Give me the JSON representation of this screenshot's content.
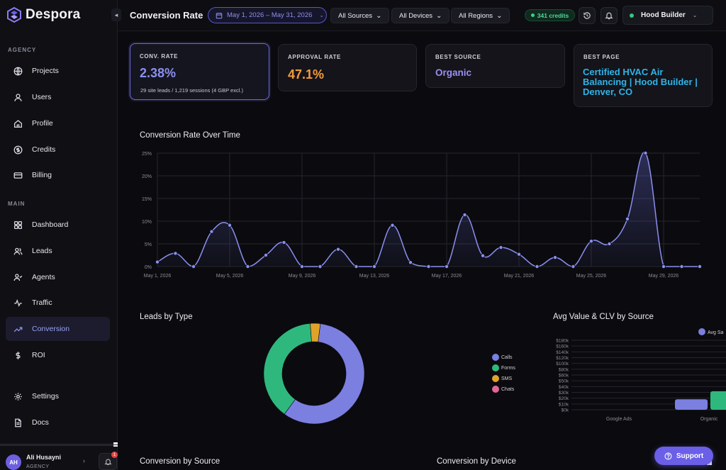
{
  "app": {
    "name": "Despora"
  },
  "sidebar": {
    "sections": [
      {
        "label": "AGENCY",
        "items": [
          {
            "label": "Projects",
            "icon": "globe-icon"
          },
          {
            "label": "Users",
            "icon": "user-icon"
          },
          {
            "label": "Profile",
            "icon": "home-icon"
          },
          {
            "label": "Credits",
            "icon": "dollar-circle-icon"
          },
          {
            "label": "Billing",
            "icon": "card-icon"
          }
        ]
      },
      {
        "label": "MAIN",
        "items": [
          {
            "label": "Dashboard",
            "icon": "grid-icon"
          },
          {
            "label": "Leads",
            "icon": "users-icon"
          },
          {
            "label": "Agents",
            "icon": "agents-icon"
          },
          {
            "label": "Traffic",
            "icon": "activity-icon"
          },
          {
            "label": "Conversion",
            "icon": "trend-icon",
            "active": true
          },
          {
            "label": "ROI",
            "icon": "dollar-icon"
          }
        ]
      }
    ],
    "bottom_items": [
      {
        "label": "Settings",
        "icon": "gear-icon"
      },
      {
        "label": "Docs",
        "icon": "doc-icon"
      }
    ],
    "user": {
      "initials": "AH",
      "name": "Ali Husayni",
      "role": "AGENCY",
      "notifications": "1"
    }
  },
  "header": {
    "title": "Conversion Rate",
    "date_range": "May 1, 2026 – May 31, 2026",
    "filters": [
      "All Sources",
      "All Devices",
      "All Regions"
    ],
    "credits": "341 credits",
    "workspace": "Hood Builder"
  },
  "stats": {
    "conv_rate": {
      "label": "CONV. RATE",
      "value": "2.38%",
      "sub": "29 site leads / 1,219 sessions (4 GBP excl.)"
    },
    "approval_rate": {
      "label": "APPROVAL RATE",
      "value": "47.1%"
    },
    "best_source": {
      "label": "BEST SOURCE",
      "value": "Organic"
    },
    "best_page": {
      "label": "BEST PAGE",
      "value": "Certified HVAC Air Balancing | Hood Builder | Denver, CO"
    }
  },
  "colors": {
    "accent": "#8b8ff0",
    "orange": "#f59b3c",
    "cyan": "#2fb4e8",
    "green": "#2fb87e"
  },
  "sections": {
    "over_time": "Conversion Rate Over Time",
    "leads_by_type": "Leads by Type",
    "avg_value": "Avg Value & CLV by Source",
    "by_source": "Conversion by Source",
    "by_device": "Conversion by Device"
  },
  "support_label": "Support",
  "chart_data": [
    {
      "type": "line",
      "title": "Conversion Rate Over Time",
      "x": [
        "May 1",
        "May 2",
        "May 3",
        "May 4",
        "May 5",
        "May 6",
        "May 7",
        "May 8",
        "May 9",
        "May 10",
        "May 11",
        "May 12",
        "May 13",
        "May 14",
        "May 15",
        "May 16",
        "May 17",
        "May 18",
        "May 19",
        "May 20",
        "May 21",
        "May 22",
        "May 23",
        "May 24",
        "May 25",
        "May 26",
        "May 27",
        "May 28",
        "May 29",
        "May 30",
        "May 31"
      ],
      "x_tick_labels": [
        "May 1, 2026",
        "May 5, 2026",
        "May 9, 2026",
        "May 13, 2026",
        "May 17, 2026",
        "May 21, 2026",
        "May 25, 2026",
        "May 29, 2026"
      ],
      "y": [
        1.0,
        2.9,
        0,
        7.7,
        9.1,
        0,
        2.5,
        5.3,
        0,
        0,
        3.8,
        0,
        0,
        9.1,
        0.9,
        0,
        0,
        11.4,
        2.4,
        4.2,
        2.7,
        0,
        2.0,
        0,
        5.6,
        5.0,
        10.5,
        25.0,
        0,
        0,
        0
      ],
      "y_tick_labels": [
        "0%",
        "5%",
        "10%",
        "15%",
        "20%",
        "25%"
      ],
      "ylim": [
        0,
        25
      ],
      "grid": true
    },
    {
      "type": "pie",
      "title": "Leads by Type",
      "donut": true,
      "categories": [
        "Calls",
        "Forms",
        "SMS",
        "Chats"
      ],
      "values": [
        18,
        12,
        1,
        0
      ],
      "colors": [
        "#7b7fe0",
        "#2fb87e",
        "#e0a32a",
        "#e0679a"
      ],
      "legend": "right"
    },
    {
      "type": "bar",
      "title": "Avg Value & CLV by Source",
      "categories": [
        "Google Ads",
        "Organic"
      ],
      "series": [
        {
          "name": "Avg Sa",
          "color": "#7b7fe0",
          "values": [
            0,
            18000
          ]
        },
        {
          "name": "",
          "color": "#2fb87e",
          "values": [
            0,
            32000
          ]
        }
      ],
      "y_tick_labels": [
        "$0k",
        "$10k",
        "$20k",
        "$30k",
        "$40k",
        "$50k",
        "$60k",
        "$80k",
        "$100k",
        "$120k",
        "$140k",
        "$160k",
        "$180k"
      ],
      "ylim": [
        0,
        180000
      ],
      "legend": "top-right"
    }
  ]
}
